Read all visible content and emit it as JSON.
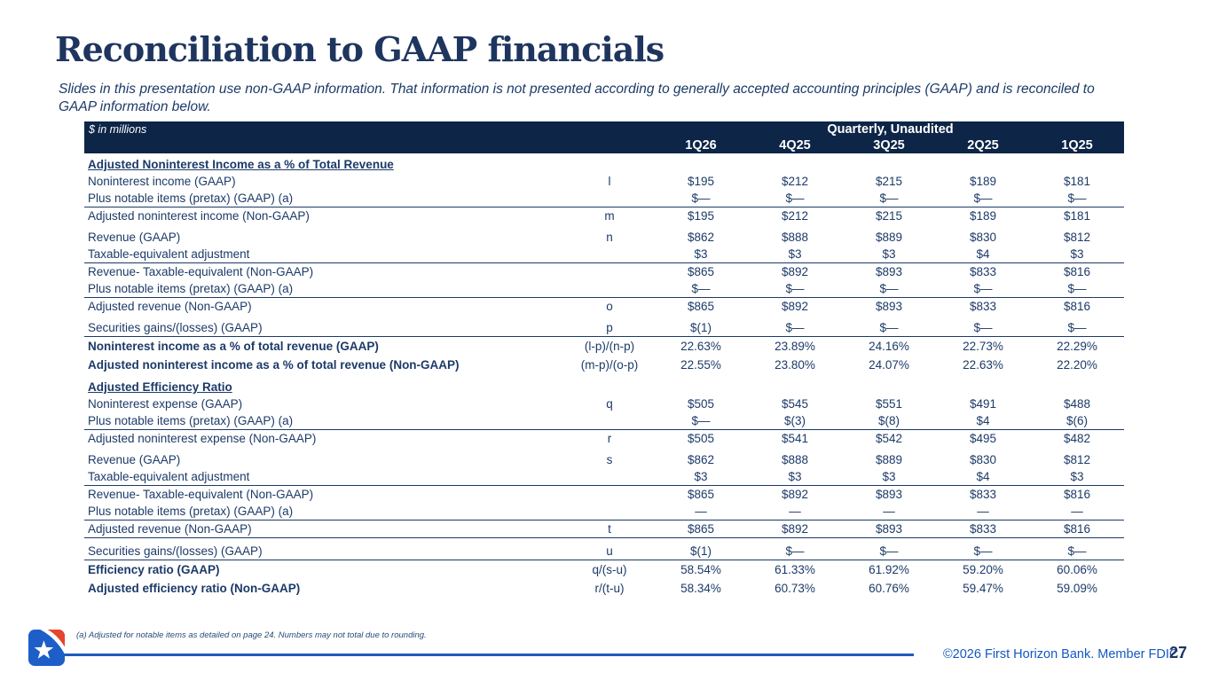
{
  "slide": {
    "title": "Reconciliation to GAAP financials",
    "subtitle": "Slides in this presentation use non-GAAP information. That information is not presented according to generally accepted accounting principles (GAAP) and is reconciled to GAAP information below."
  },
  "table": {
    "units_label": "$ in millions",
    "group_header": "Quarterly, Unaudited",
    "columns": [
      "1Q26",
      "4Q25",
      "3Q25",
      "2Q25",
      "1Q25"
    ],
    "sections": [
      {
        "heading": "Adjusted Noninterest Income as a % of Total Revenue",
        "rows": [
          {
            "label": "Noninterest income (GAAP)",
            "formula": "l",
            "values": [
              "$195",
              "$212",
              "$215",
              "$189",
              "$181"
            ]
          },
          {
            "label": "Plus notable items (pretax) (GAAP) (a)",
            "formula": "",
            "values": [
              "$—",
              "$—",
              "$—",
              "$—",
              "$—"
            ],
            "border_bottom": true
          },
          {
            "label": "Adjusted noninterest income (Non-GAAP)",
            "formula": "m",
            "values": [
              "$195",
              "$212",
              "$215",
              "$189",
              "$181"
            ],
            "gap_after": true
          },
          {
            "label": "Revenue (GAAP)",
            "formula": "n",
            "values": [
              "$862",
              "$888",
              "$889",
              "$830",
              "$812"
            ]
          },
          {
            "label": "Taxable-equivalent adjustment",
            "formula": "",
            "values": [
              "$3",
              "$3",
              "$3",
              "$4",
              "$3"
            ],
            "border_bottom": true
          },
          {
            "label": "Revenue- Taxable-equivalent (Non-GAAP)",
            "formula": "",
            "values": [
              "$865",
              "$892",
              "$893",
              "$833",
              "$816"
            ]
          },
          {
            "label": "Plus notable items (pretax) (GAAP) (a)",
            "formula": "",
            "values": [
              "$—",
              "$—",
              "$—",
              "$—",
              "$—"
            ],
            "border_bottom": true
          },
          {
            "label": "Adjusted revenue (Non-GAAP)",
            "formula": "o",
            "values": [
              "$865",
              "$892",
              "$893",
              "$833",
              "$816"
            ],
            "gap_after": true
          },
          {
            "label": "Securities gains/(losses) (GAAP)",
            "formula": "p",
            "values": [
              "$(1)",
              "$—",
              "$—",
              "$—",
              "$—"
            ],
            "border_bottom": true
          },
          {
            "label": "Noninterest income as a % of total revenue (GAAP)",
            "formula": "(l-p)/(n-p)",
            "values": [
              "22.63%",
              "23.89%",
              "24.16%",
              "22.73%",
              "22.29%"
            ],
            "bold": true
          },
          {
            "label": "Adjusted noninterest income as a % of total revenue (Non-GAAP)",
            "formula": "(m-p)/(o-p)",
            "values": [
              "22.55%",
              "23.80%",
              "24.07%",
              "22.63%",
              "22.20%"
            ],
            "bold": true
          }
        ]
      },
      {
        "heading": "Adjusted Efficiency Ratio",
        "rows": [
          {
            "label": "Noninterest expense (GAAP)",
            "formula": "q",
            "values": [
              "$505",
              "$545",
              "$551",
              "$491",
              "$488"
            ]
          },
          {
            "label": "Plus notable items (pretax) (GAAP) (a)",
            "formula": "",
            "values": [
              "$—",
              "$(3)",
              "$(8)",
              "$4",
              "$(6)"
            ],
            "border_bottom": true
          },
          {
            "label": "Adjusted noninterest expense (Non-GAAP)",
            "formula": "r",
            "values": [
              "$505",
              "$541",
              "$542",
              "$495",
              "$482"
            ],
            "gap_after": true
          },
          {
            "label": "Revenue (GAAP)",
            "formula": "s",
            "values": [
              "$862",
              "$888",
              "$889",
              "$830",
              "$812"
            ]
          },
          {
            "label": "Taxable-equivalent adjustment",
            "formula": "",
            "values": [
              "$3",
              "$3",
              "$3",
              "$4",
              "$3"
            ],
            "border_bottom": true
          },
          {
            "label": "Revenue- Taxable-equivalent (Non-GAAP)",
            "formula": "",
            "values": [
              "$865",
              "$892",
              "$893",
              "$833",
              "$816"
            ]
          },
          {
            "label": "Plus notable items (pretax) (GAAP) (a)",
            "formula": "",
            "values": [
              "—",
              "—",
              "—",
              "—",
              "—"
            ],
            "border_bottom": true
          },
          {
            "label": "Adjusted revenue  (Non-GAAP)",
            "formula": "t",
            "values": [
              "$865",
              "$892",
              "$893",
              "$833",
              "$816"
            ],
            "border_bottom": true,
            "gap_after": true
          },
          {
            "label": "Securities gains/(losses) (GAAP)",
            "formula": "u",
            "values": [
              "$(1)",
              "$—",
              "$—",
              "$—",
              "$—"
            ],
            "border_bottom": true
          },
          {
            "label": "Efficiency ratio (GAAP)",
            "formula": "q/(s-u)",
            "values": [
              "58.54%",
              "61.33%",
              "61.92%",
              "59.20%",
              "60.06%"
            ],
            "bold": true
          },
          {
            "label": "Adjusted efficiency ratio (Non-GAAP)",
            "formula": "r/(t-u)",
            "values": [
              "58.34%",
              "60.73%",
              "60.76%",
              "59.47%",
              "59.09%"
            ],
            "bold": true
          }
        ]
      }
    ]
  },
  "footer": {
    "footnote": "(a) Adjusted for notable items as detailed on page 24. Numbers may not total due to rounding.",
    "copyright": "©2026 First Horizon Bank. Member FDIC.",
    "page_number": "27",
    "logo": "first-horizon-logo"
  },
  "colors": {
    "header_bar": "#0d2547",
    "navy_text": "#1c3a68",
    "title_navy": "#1e355f",
    "accent_blue": "#1f5bbf",
    "copyright_blue": "#1458c4",
    "logo_blue": "#1d5ec9",
    "logo_red": "#e8432d"
  }
}
